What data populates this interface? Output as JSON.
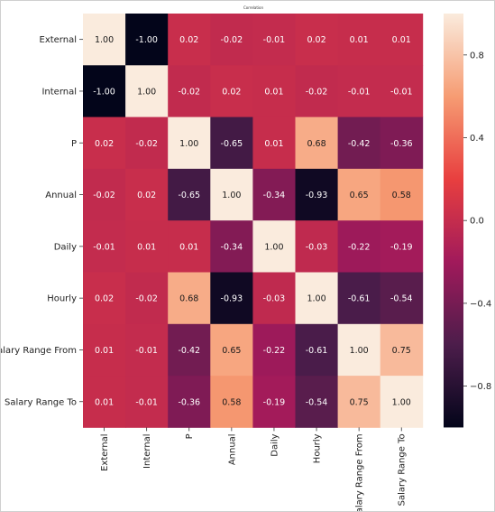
{
  "chart_data": {
    "type": "heatmap",
    "title": "Correlation",
    "rows": [
      "External",
      "Internal",
      "P",
      "Annual",
      "Daily",
      "Hourly",
      "Salary Range From",
      "Salary Range To"
    ],
    "columns": [
      "External",
      "Internal",
      "P",
      "Annual",
      "Daily",
      "Hourly",
      "Salary Range From",
      "Salary Range To"
    ],
    "values": [
      [
        1.0,
        -1.0,
        0.02,
        -0.02,
        -0.01,
        0.02,
        0.01,
        0.01
      ],
      [
        -1.0,
        1.0,
        -0.02,
        0.02,
        0.01,
        -0.02,
        -0.01,
        -0.01
      ],
      [
        0.02,
        -0.02,
        1.0,
        -0.65,
        0.01,
        0.68,
        -0.42,
        -0.36
      ],
      [
        -0.02,
        0.02,
        -0.65,
        1.0,
        -0.34,
        -0.93,
        0.65,
        0.58
      ],
      [
        -0.01,
        0.01,
        0.01,
        -0.34,
        1.0,
        -0.03,
        -0.22,
        -0.19
      ],
      [
        0.02,
        -0.02,
        0.68,
        -0.93,
        -0.03,
        1.0,
        -0.61,
        -0.54
      ],
      [
        0.01,
        -0.01,
        -0.42,
        0.65,
        -0.22,
        -0.61,
        1.0,
        0.75
      ],
      [
        0.01,
        -0.01,
        -0.36,
        0.58,
        -0.19,
        -0.54,
        0.75,
        1.0
      ]
    ],
    "value_labels": [
      [
        "1.00",
        "-1.00",
        "0.02",
        "-0.02",
        "-0.01",
        "0.02",
        "0.01",
        "0.01"
      ],
      [
        "-1.00",
        "1.00",
        "-0.02",
        "0.02",
        "0.01",
        "-0.02",
        "-0.01",
        "-0.01"
      ],
      [
        "0.02",
        "-0.02",
        "1.00",
        "-0.65",
        "0.01",
        "0.68",
        "-0.42",
        "-0.36"
      ],
      [
        "-0.02",
        "0.02",
        "-0.65",
        "1.00",
        "-0.34",
        "-0.93",
        "0.65",
        "0.58"
      ],
      [
        "-0.01",
        "0.01",
        "0.01",
        "-0.34",
        "1.00",
        "-0.03",
        "-0.22",
        "-0.19"
      ],
      [
        "0.02",
        "-0.02",
        "0.68",
        "-0.93",
        "-0.03",
        "1.00",
        "-0.61",
        "-0.54"
      ],
      [
        "0.01",
        "-0.01",
        "-0.42",
        "0.65",
        "-0.22",
        "-0.61",
        "1.00",
        "0.75"
      ],
      [
        "0.01",
        "-0.01",
        "-0.36",
        "0.58",
        "-0.19",
        "-0.54",
        "0.75",
        "1.00"
      ]
    ],
    "colorbar": {
      "range": [
        -1.0,
        1.0
      ],
      "ticks": [
        0.8,
        0.4,
        0.0,
        -0.4,
        -0.8
      ],
      "tick_labels": [
        "0.8",
        "0.4",
        "0.0",
        "−0.4",
        "−0.8"
      ]
    },
    "colormap": "rocket",
    "colormap_stops": [
      "#03051a",
      "#4c1d4b",
      "#a11a5b",
      "#e83f3f",
      "#f69c73",
      "#faebdd"
    ],
    "grid": false
  }
}
